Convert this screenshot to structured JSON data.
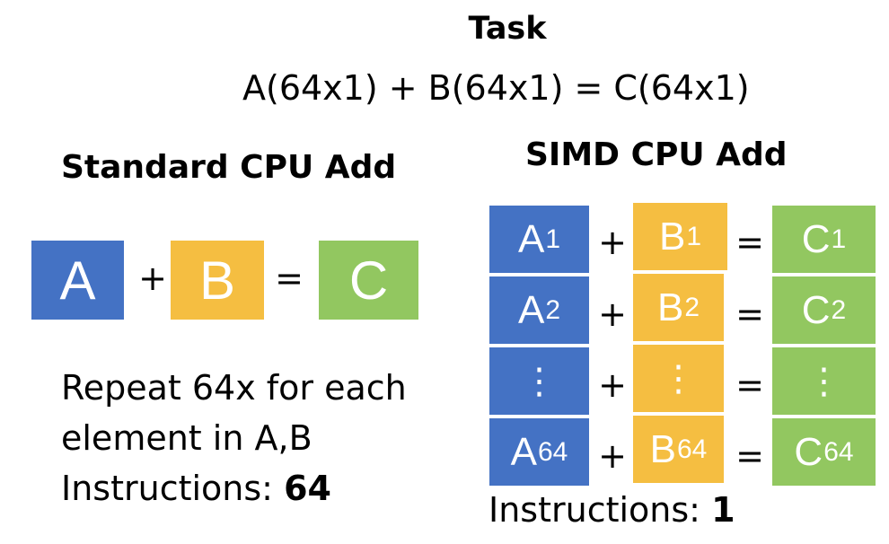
{
  "task": {
    "title": "Task",
    "equation": "A(64x1) + B(64x1) = C(64x1)"
  },
  "standard": {
    "title": "Standard CPU Add",
    "a": "A",
    "plus": "+",
    "b": "B",
    "equals": "=",
    "c": "C",
    "repeat_line1": "Repeat 64x for each",
    "repeat_line2": "element in A,B",
    "instructions_label": "Instructions:",
    "instructions_count": "64"
  },
  "simd": {
    "title": "SIMD CPU Add",
    "rows": [
      {
        "a": "A",
        "a_sub": "1",
        "b": "B",
        "b_sub": "1",
        "c": "C",
        "c_sub": "1"
      },
      {
        "a": "A",
        "a_sub": "2",
        "b": "B",
        "b_sub": "2",
        "c": "C",
        "c_sub": "2"
      },
      {
        "a": "⋮",
        "a_sub": "",
        "b": "⋮",
        "b_sub": "",
        "c": "⋮",
        "c_sub": ""
      },
      {
        "a": "A",
        "a_sub": "64",
        "b": "B",
        "b_sub": "64",
        "c": "C",
        "c_sub": "64"
      }
    ],
    "plus": "+",
    "equals": "=",
    "instructions_label": "Instructions:",
    "instructions_count": "1"
  },
  "colors": {
    "a": "#4472C4",
    "b": "#F5BE41",
    "c": "#92C760"
  }
}
